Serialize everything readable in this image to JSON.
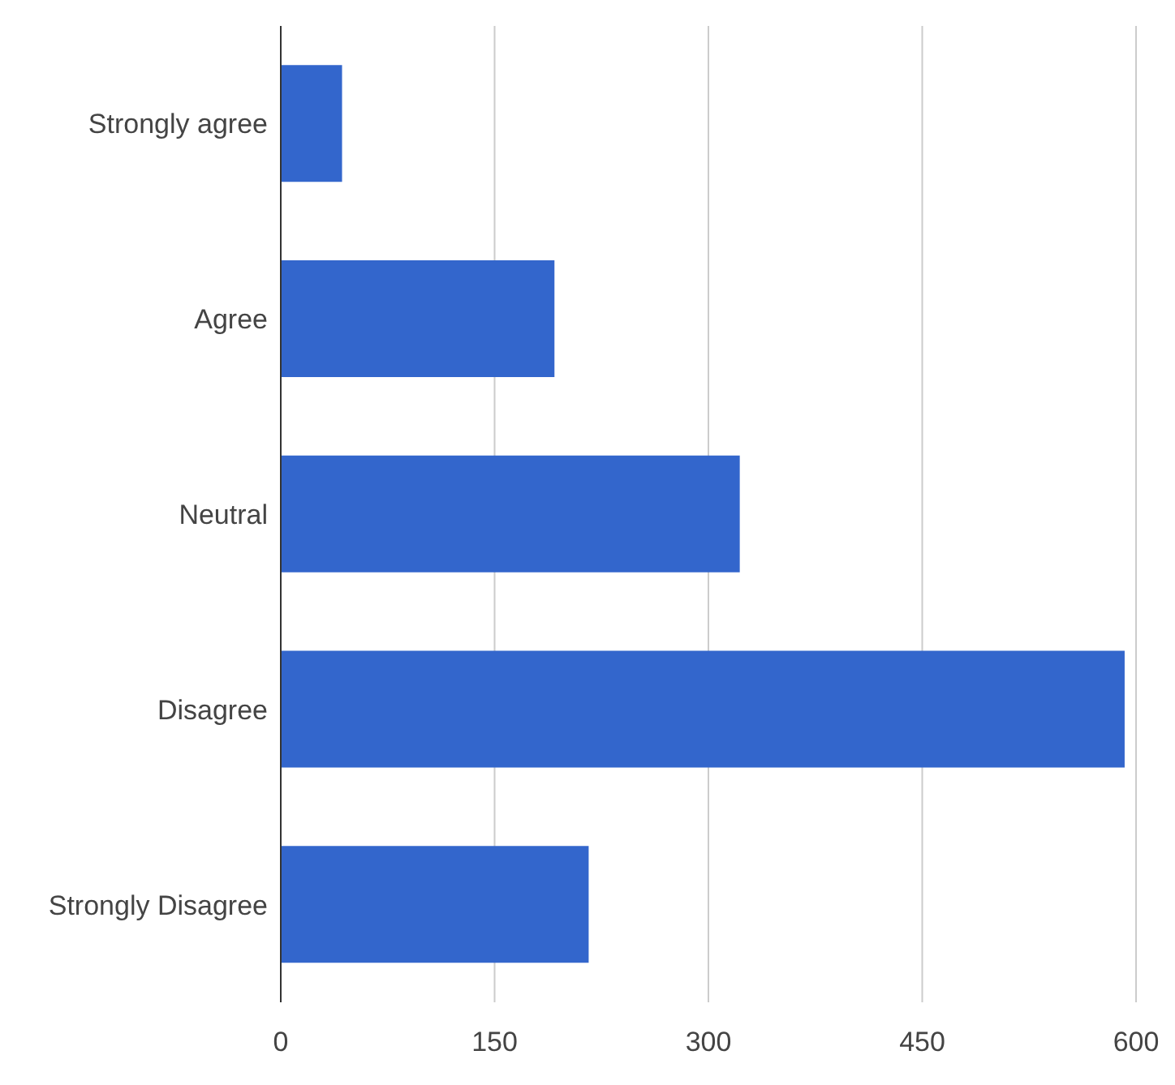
{
  "chart_data": {
    "type": "bar",
    "orientation": "horizontal",
    "categories": [
      "Strongly agree",
      "Agree",
      "Neutral",
      "Disagree",
      "Strongly Disagree"
    ],
    "values": [
      43,
      192,
      322,
      592,
      216
    ],
    "color": "#3366cc",
    "xlim": [
      0,
      600
    ],
    "xticks": [
      0,
      150,
      300,
      450,
      600
    ],
    "grid": "x"
  }
}
